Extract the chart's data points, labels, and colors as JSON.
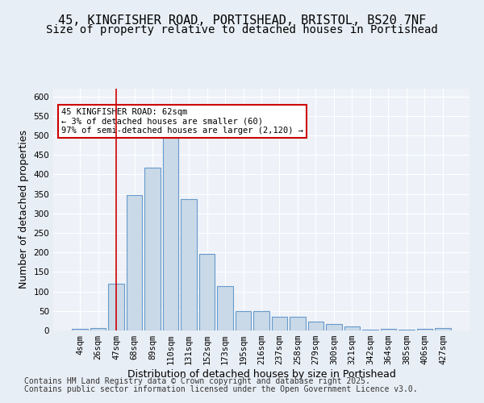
{
  "title_line1": "45, KINGFISHER ROAD, PORTISHEAD, BRISTOL, BS20 7NF",
  "title_line2": "Size of property relative to detached houses in Portishead",
  "xlabel": "Distribution of detached houses by size in Portishead",
  "ylabel": "Number of detached properties",
  "categories": [
    "4sqm",
    "26sqm",
    "47sqm",
    "68sqm",
    "89sqm",
    "110sqm",
    "131sqm",
    "152sqm",
    "173sqm",
    "195sqm",
    "216sqm",
    "237sqm",
    "258sqm",
    "279sqm",
    "300sqm",
    "321sqm",
    "342sqm",
    "364sqm",
    "385sqm",
    "406sqm",
    "427sqm"
  ],
  "values": [
    4,
    7,
    120,
    348,
    417,
    497,
    337,
    196,
    113,
    50,
    50,
    35,
    35,
    22,
    17,
    10,
    2,
    5,
    2,
    5,
    6
  ],
  "bar_color": "#c9d9e8",
  "bar_edge_color": "#6699cc",
  "vline_x": 2,
  "vline_color": "#cc0000",
  "annotation_text": "45 KINGFISHER ROAD: 62sqm\n← 3% of detached houses are smaller (60)\n97% of semi-detached houses are larger (2,120) →",
  "annotation_box_color": "#ffffff",
  "annotation_box_edge_color": "#cc0000",
  "ylim": [
    0,
    620
  ],
  "yticks": [
    0,
    50,
    100,
    150,
    200,
    250,
    300,
    350,
    400,
    450,
    500,
    550,
    600
  ],
  "footer_line1": "Contains HM Land Registry data © Crown copyright and database right 2025.",
  "footer_line2": "Contains public sector information licensed under the Open Government Licence v3.0.",
  "background_color": "#e8eef5",
  "plot_bg_color": "#eef2f8",
  "grid_color": "#ffffff",
  "title_fontsize": 11,
  "subtitle_fontsize": 10,
  "axis_label_fontsize": 9,
  "tick_fontsize": 7.5,
  "footer_fontsize": 7
}
